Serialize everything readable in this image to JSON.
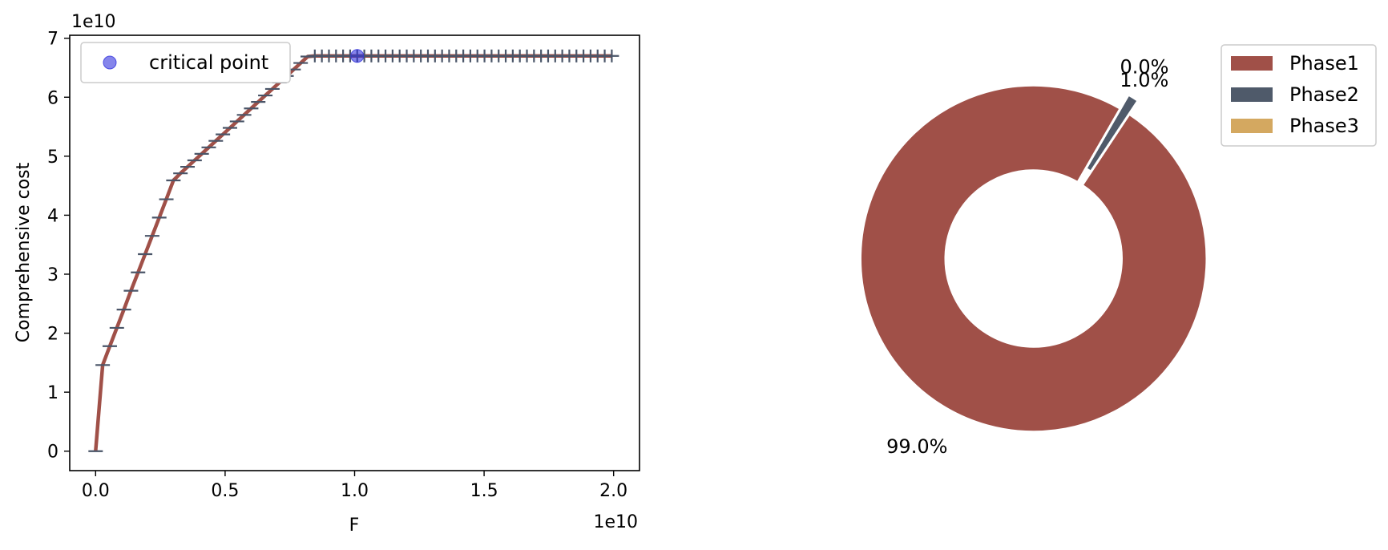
{
  "colors": {
    "line": "#a05048",
    "marker": "#4a5568",
    "critical": "#3333dd",
    "phase1": "#a05048",
    "phase2": "#4f5a6a",
    "phase3": "#d4a860"
  },
  "chart_data": [
    {
      "type": "line",
      "xlabel": "F",
      "ylabel": "Comprehensive cost",
      "x_multiplier": "1e10",
      "y_multiplier": "1e10",
      "xlim": [
        -0.1,
        2.1
      ],
      "ylim": [
        -0.33,
        7.05
      ],
      "x_ticks": [
        0,
        0.5,
        1.0,
        1.5,
        2.0
      ],
      "x_tick_labels": [
        "0.0",
        "0.5",
        "1.0",
        "1.5",
        "2.0"
      ],
      "y_ticks": [
        0,
        1,
        2,
        3,
        4,
        5,
        6,
        7
      ],
      "y_tick_labels": [
        "0",
        "1",
        "2",
        "3",
        "4",
        "5",
        "6",
        "7"
      ],
      "grid": false,
      "legend_position": "top-left",
      "series": [
        {
          "marker": "_",
          "x": [
            0,
            0.0273,
            0.0546,
            0.0819,
            0.1092,
            0.1365,
            0.1638,
            0.1911,
            0.2184,
            0.2457,
            0.273,
            0.3003,
            0.3276,
            0.3549,
            0.3822,
            0.4095,
            0.4368,
            0.4641,
            0.4914,
            0.5187,
            0.546,
            0.5733,
            0.6006,
            0.6279,
            0.6552,
            0.6825,
            0.7098,
            0.7371,
            0.7644,
            0.7917,
            0.819,
            0.8463,
            0.8736,
            0.9009,
            0.9282,
            0.9555,
            0.9828,
            1.0101,
            1.0374,
            1.0647,
            1.092,
            1.1193,
            1.1466,
            1.1739,
            1.2012,
            1.2285,
            1.2558,
            1.2831,
            1.3104,
            1.3377,
            1.365,
            1.3923,
            1.4196,
            1.4469,
            1.4742,
            1.5015,
            1.5288,
            1.5561,
            1.5834,
            1.6107,
            1.638,
            1.6653,
            1.6926,
            1.7199,
            1.7472,
            1.7745,
            1.8018,
            1.8291,
            1.8564,
            1.8837,
            1.911,
            1.9383,
            1.9656,
            1.9929
          ],
          "y": [
            0,
            1.46,
            1.78,
            2.09,
            2.4,
            2.72,
            3.03,
            3.34,
            3.65,
            3.96,
            4.27,
            4.59,
            4.71,
            4.82,
            4.93,
            5.04,
            5.15,
            5.26,
            5.37,
            5.48,
            5.59,
            5.7,
            5.81,
            5.92,
            6.03,
            6.14,
            6.25,
            6.36,
            6.47,
            6.58,
            6.69,
            6.7,
            6.7,
            6.7,
            6.7,
            6.7,
            6.7,
            6.7,
            6.7,
            6.7,
            6.7,
            6.7,
            6.7,
            6.7,
            6.7,
            6.7,
            6.7,
            6.7,
            6.7,
            6.7,
            6.7,
            6.7,
            6.7,
            6.7,
            6.7,
            6.7,
            6.7,
            6.7,
            6.7,
            6.7,
            6.7,
            6.7,
            6.7,
            6.7,
            6.7,
            6.7,
            6.7,
            6.7,
            6.7,
            6.7,
            6.7,
            6.7,
            6.7,
            6.7
          ]
        },
        {
          "name": "critical point",
          "marker": "o",
          "x": [
            1.01
          ],
          "y": [
            6.7
          ]
        }
      ]
    },
    {
      "type": "pie",
      "donut": true,
      "legend_position": "top-right",
      "labels": [
        "Phase1",
        "Phase2",
        "Phase3"
      ],
      "values": [
        99.0,
        1.0,
        0.0
      ],
      "data_labels": [
        "99.0%",
        "1.0%",
        "0.0%"
      ]
    }
  ]
}
